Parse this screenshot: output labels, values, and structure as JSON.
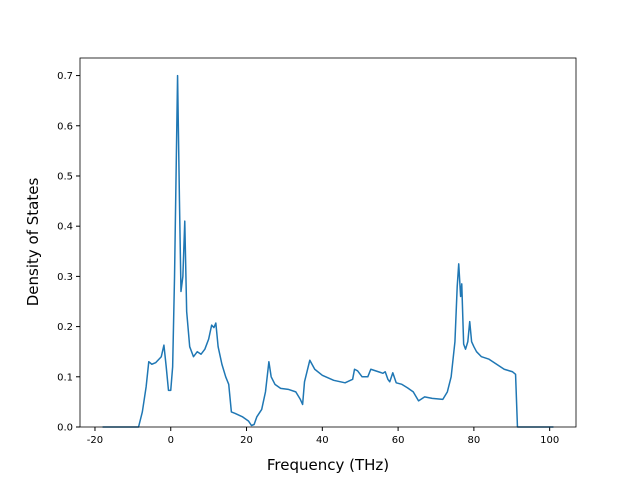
{
  "chart_data": {
    "type": "line",
    "xlabel": "Frequency (THz)",
    "ylabel": "Density of States",
    "x": [
      -18,
      -8.5,
      -7.5,
      -6.5,
      -5.8,
      -5,
      -4,
      -2.5,
      -1.8,
      -1.2,
      -0.6,
      0,
      0.5,
      1,
      1.8,
      2.3,
      2.7,
      3.2,
      3.7,
      4.2,
      5,
      6,
      7,
      8,
      9,
      10,
      10.8,
      11.4,
      11.9,
      12.5,
      13.5,
      14.5,
      15.3,
      16,
      17,
      19,
      20.5,
      21.3,
      22,
      22.7,
      24,
      25,
      25.9,
      26.5,
      27.5,
      29,
      31,
      33,
      34.2,
      34.8,
      35.3,
      36.7,
      38,
      40,
      43,
      46,
      48,
      48.5,
      49.3,
      50.5,
      52,
      52.8,
      54,
      56,
      56.6,
      57.3,
      57.8,
      58.6,
      59.5,
      61,
      62.5,
      64,
      65.4,
      67,
      69,
      71.8,
      73,
      74,
      75,
      75.6,
      76,
      76.5,
      76.8,
      77.3,
      77.8,
      78.4,
      78.9,
      79.4,
      80,
      80.7,
      82,
      84,
      86,
      88,
      90.2,
      91,
      91.5,
      95,
      101
    ],
    "series": [
      {
        "color": "#1f77b4",
        "values": [
          0,
          0,
          0.03,
          0.08,
          0.13,
          0.125,
          0.128,
          0.14,
          0.163,
          0.12,
          0.073,
          0.073,
          0.12,
          0.3,
          0.7,
          0.45,
          0.27,
          0.3,
          0.41,
          0.23,
          0.16,
          0.14,
          0.15,
          0.145,
          0.155,
          0.175,
          0.203,
          0.198,
          0.207,
          0.16,
          0.125,
          0.1,
          0.085,
          0.03,
          0.027,
          0.02,
          0.012,
          0.003,
          0.005,
          0.02,
          0.035,
          0.07,
          0.13,
          0.1,
          0.085,
          0.077,
          0.075,
          0.07,
          0.055,
          0.045,
          0.09,
          0.133,
          0.115,
          0.103,
          0.093,
          0.088,
          0.095,
          0.115,
          0.112,
          0.1,
          0.1,
          0.115,
          0.112,
          0.107,
          0.11,
          0.095,
          0.09,
          0.108,
          0.088,
          0.085,
          0.078,
          0.07,
          0.052,
          0.06,
          0.057,
          0.055,
          0.07,
          0.1,
          0.17,
          0.28,
          0.325,
          0.26,
          0.285,
          0.165,
          0.155,
          0.17,
          0.21,
          0.17,
          0.16,
          0.15,
          0.14,
          0.135,
          0.125,
          0.115,
          0.11,
          0.105,
          0,
          0,
          0
        ]
      }
    ],
    "xlim": [
      -23.95,
      106.95
    ],
    "xticks": [
      -20,
      0,
      20,
      40,
      60,
      80,
      100
    ],
    "ylim": [
      0,
      0.735
    ],
    "yticks": [
      {
        "value": 0,
        "label": "0.0"
      },
      0.1,
      0.2,
      0.3,
      0.4,
      0.5,
      0.6,
      0.7
    ],
    "grid": false
  }
}
